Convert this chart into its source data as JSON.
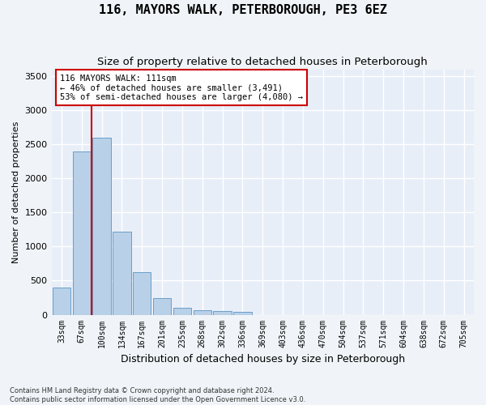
{
  "title": "116, MAYORS WALK, PETERBOROUGH, PE3 6EZ",
  "subtitle": "Size of property relative to detached houses in Peterborough",
  "xlabel": "Distribution of detached houses by size in Peterborough",
  "ylabel": "Number of detached properties",
  "footnote1": "Contains HM Land Registry data © Crown copyright and database right 2024.",
  "footnote2": "Contains public sector information licensed under the Open Government Licence v3.0.",
  "categories": [
    "33sqm",
    "67sqm",
    "100sqm",
    "134sqm",
    "167sqm",
    "201sqm",
    "235sqm",
    "268sqm",
    "302sqm",
    "336sqm",
    "369sqm",
    "403sqm",
    "436sqm",
    "470sqm",
    "504sqm",
    "537sqm",
    "571sqm",
    "604sqm",
    "638sqm",
    "672sqm",
    "705sqm"
  ],
  "values": [
    400,
    2400,
    2600,
    1220,
    630,
    250,
    100,
    70,
    55,
    45,
    0,
    0,
    0,
    0,
    0,
    0,
    0,
    0,
    0,
    0,
    0
  ],
  "bar_color": "#b8d0e8",
  "bar_edge_color": "#6a9fc8",
  "red_line_x": 1.5,
  "annotation_line1": "116 MAYORS WALK: 111sqm",
  "annotation_line2": "← 46% of detached houses are smaller (3,491)",
  "annotation_line3": "53% of semi-detached houses are larger (4,080) →",
  "annotation_box_color": "#ffffff",
  "annotation_border_color": "#cc0000",
  "red_line_color": "#cc0000",
  "ylim": [
    0,
    3600
  ],
  "yticks": [
    0,
    500,
    1000,
    1500,
    2000,
    2500,
    3000,
    3500
  ],
  "background_color": "#f0f4f8",
  "plot_background": "#e8eef8",
  "grid_color": "#ffffff",
  "title_fontsize": 11,
  "subtitle_fontsize": 9.5
}
